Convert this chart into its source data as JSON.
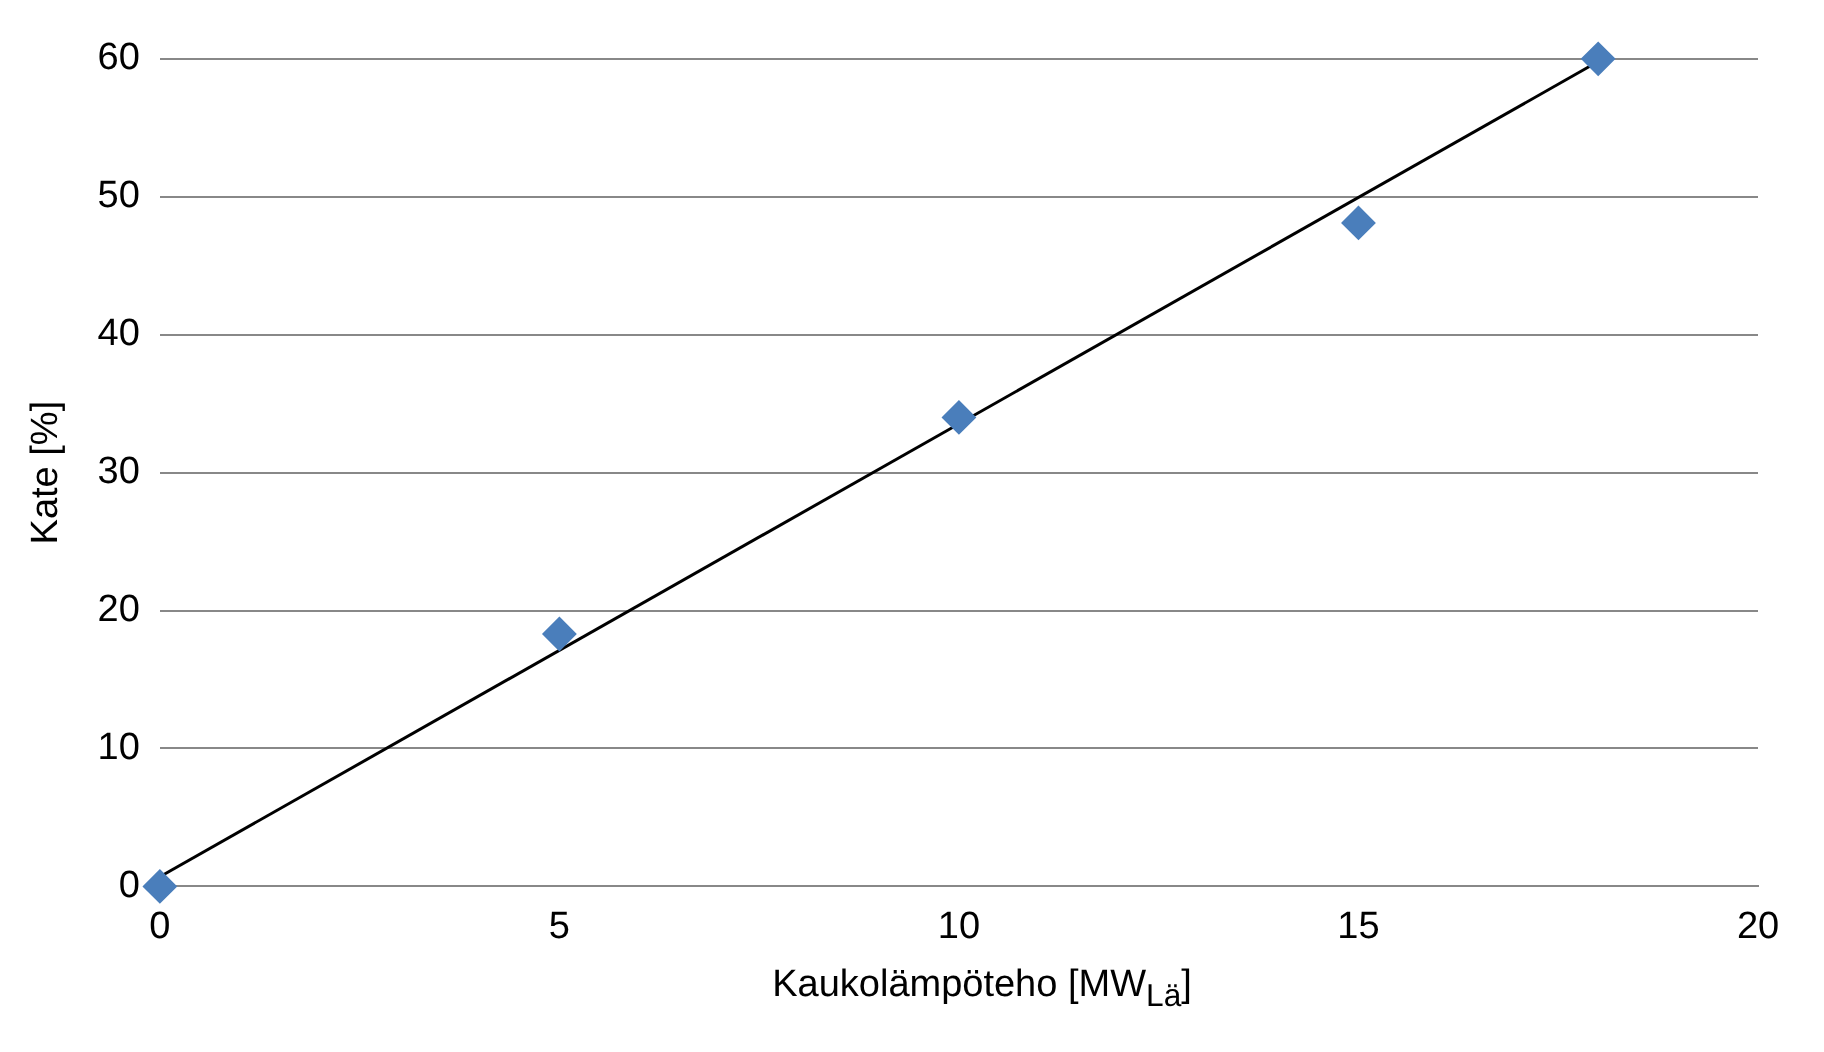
{
  "chart_data": {
    "type": "scatter",
    "xlabel": "Kaukolämpöteho [MW$_{Lä}$]",
    "ylabel": "Kate [%]",
    "xlim": [
      0,
      20
    ],
    "xticks": [
      0,
      5,
      10,
      15,
      20
    ],
    "ylim": [
      0,
      60
    ],
    "yticks": [
      0,
      10,
      20,
      30,
      40,
      50,
      60
    ],
    "grid": "y",
    "legend": false,
    "series": [
      {
        "color": "#4a7ebb",
        "marker": "diamond",
        "x": [
          0,
          5,
          10,
          15,
          18
        ],
        "values": [
          0,
          18.3,
          34.0,
          48.1,
          60
        ]
      },
      {
        "type": "line",
        "color": "#000000",
        "marker": "none",
        "line_style": "solid",
        "x": [
          0,
          18
        ],
        "values": [
          0.7,
          59.8
        ]
      }
    ]
  }
}
